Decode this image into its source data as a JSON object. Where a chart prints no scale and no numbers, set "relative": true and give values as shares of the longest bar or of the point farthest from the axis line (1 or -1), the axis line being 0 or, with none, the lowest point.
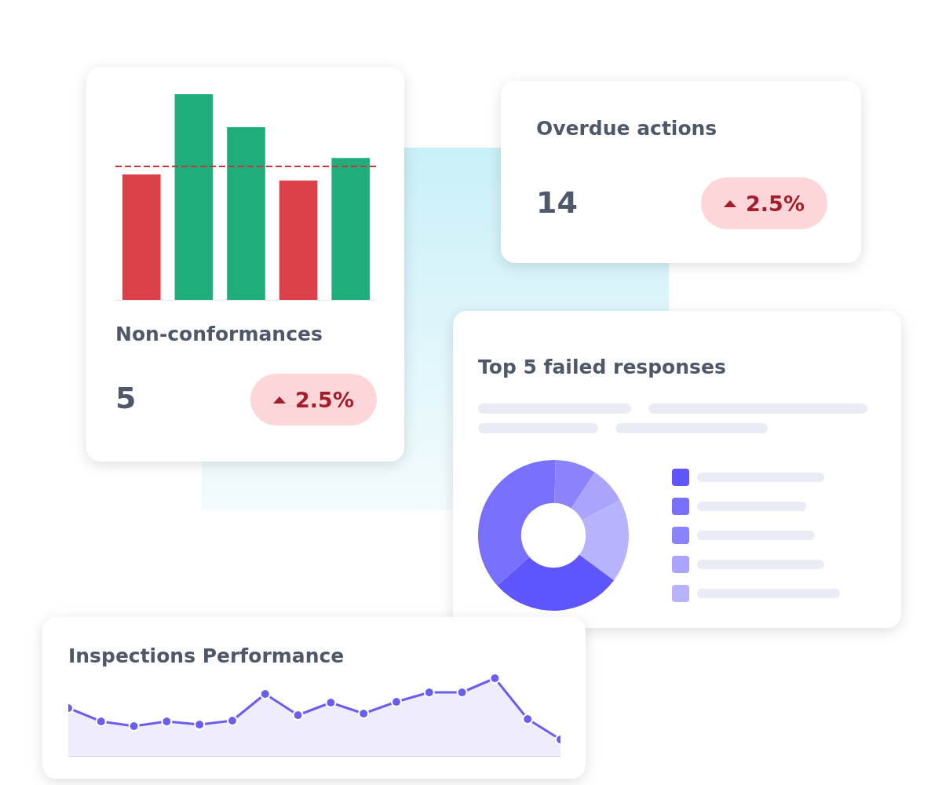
{
  "chart_data": [
    {
      "type": "bar",
      "relative": true,
      "title": "Non-conformances",
      "categories": [
        null,
        null,
        null,
        null,
        null
      ],
      "values": [
        0.61,
        1,
        0.84,
        0.58,
        0.69
      ],
      "colors": [
        "#dc414a",
        "#1fad7c",
        "#1fad7c",
        "#dc414a",
        "#1fad7c"
      ],
      "ref_lines": [
        {
          "axis": "y",
          "value": 0.65,
          "color": "#c9343e",
          "line_style": "dashed"
        }
      ],
      "annotations": [
        "5",
        "2.5%"
      ]
    },
    {
      "type": "other",
      "title": "Overdue actions",
      "annotations": [
        "14",
        "2.5%"
      ]
    },
    {
      "type": "donut",
      "title": "Top 5 failed responses",
      "categories": [
        null,
        null,
        null,
        null,
        null
      ],
      "values": [
        28.2,
        37.1,
        8.8,
        8,
        17.9
      ],
      "colors": [
        "#5f55fc",
        "#7870fc",
        "#8a83fc",
        "#aaa4fc",
        "#b8b3fd"
      ]
    },
    {
      "type": "area",
      "relative": true,
      "title": "Inspections Performance",
      "categories": [
        null,
        null,
        null,
        null,
        null,
        null,
        null,
        null,
        null,
        null,
        null,
        null,
        null,
        null,
        null,
        null
      ],
      "values": [
        0.62,
        0.45,
        0.39,
        0.45,
        0.41,
        0.46,
        0.8,
        0.53,
        0.69,
        0.55,
        0.7,
        0.82,
        0.82,
        1,
        0.48,
        0.22
      ],
      "color": "#6a5ef0",
      "marker": "circle"
    }
  ]
}
